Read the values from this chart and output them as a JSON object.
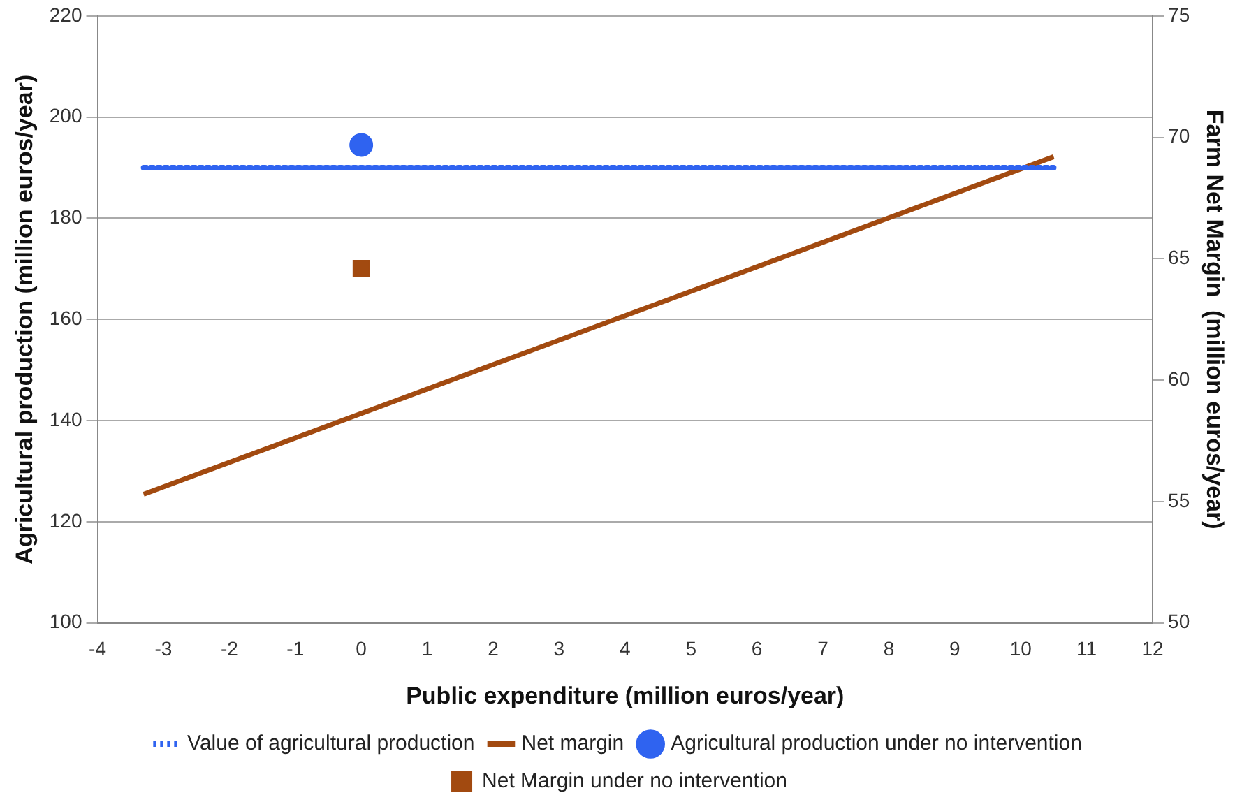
{
  "chart_data": {
    "type": "line",
    "xlabel": "Public expenditure (million euros/year)",
    "ylabel": "Agricultural production (million euros/year)",
    "y2label": "Farm Net Margin  (million euros/year)",
    "xlim": [
      -4,
      12
    ],
    "xticks": [
      -4,
      -3,
      -2,
      -1,
      0,
      1,
      2,
      3,
      4,
      5,
      6,
      7,
      8,
      9,
      10,
      11,
      12
    ],
    "ylim": [
      100,
      220
    ],
    "yticks": [
      100,
      120,
      140,
      160,
      180,
      200,
      220
    ],
    "y2lim": [
      50,
      75
    ],
    "y2ticks": [
      50,
      55,
      60,
      65,
      70,
      75
    ],
    "grid": "y",
    "legend": "bottom",
    "series": [
      {
        "name": "Value of agricultural production",
        "color": "#2f63f0",
        "x": [
          -3.3,
          10.5
        ],
        "values": [
          190,
          190
        ],
        "line_style": "dotted",
        "marker": "none"
      },
      {
        "name": "Net margin",
        "color": "#a24a10",
        "x": [
          -3.3,
          10.5
        ],
        "values": [
          55.3,
          69.2
        ],
        "axis": "y2",
        "line_style": "solid",
        "marker": "none"
      },
      {
        "name": "Agricultural production under no intervention",
        "type": "scatter",
        "color": "#2f63f0",
        "x": [
          0
        ],
        "values": [
          194.5
        ],
        "marker": "circle"
      },
      {
        "name": "Net Margin under no intervention",
        "type": "scatter",
        "color": "#a24a10",
        "x": [
          0
        ],
        "values": [
          64.6
        ],
        "axis": "y2",
        "marker": "square"
      }
    ]
  }
}
